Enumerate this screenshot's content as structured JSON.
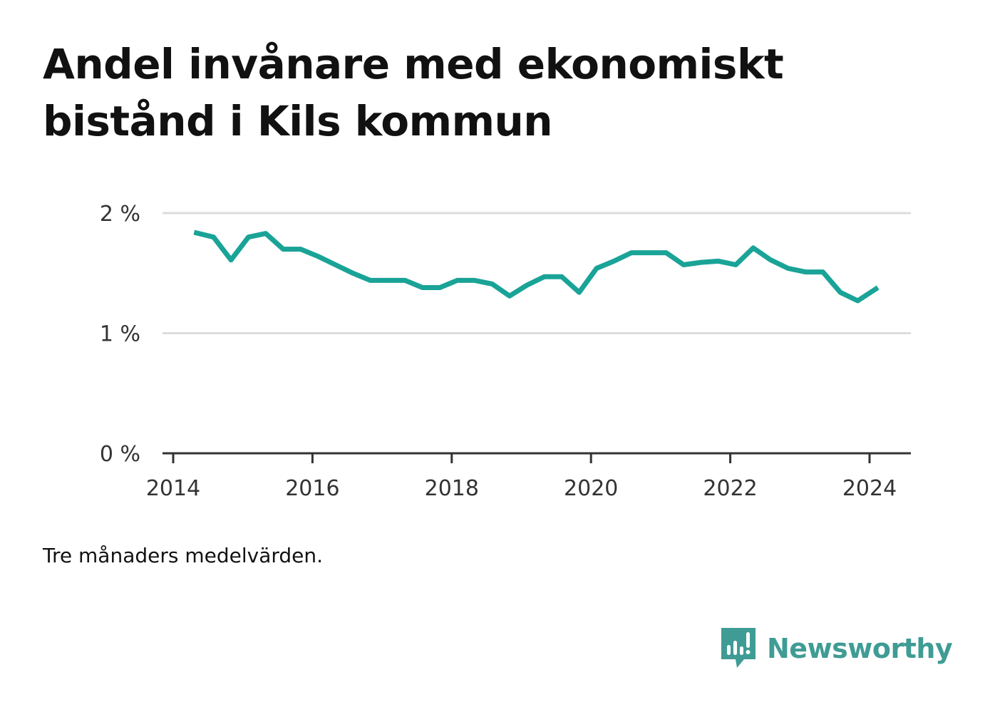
{
  "title": "Andel invånare med ekonomiskt bistånd i Kils kommun",
  "note": "Tre månaders medelvärden.",
  "brand": {
    "name": "Newsworthy",
    "color": "#3f9c94",
    "icon": "newsworthy-logo-icon"
  },
  "colors": {
    "line": "#1aa397",
    "grid": "#dddddd",
    "axis": "#333333"
  },
  "chart_data": {
    "type": "line",
    "title": "Andel invånare med ekonomiskt bistånd i Kils kommun",
    "xlabel": "",
    "ylabel": "",
    "xlim": [
      2014,
      2024.55
    ],
    "ylim": [
      0,
      2
    ],
    "x_ticks": [
      2014,
      2016,
      2018,
      2020,
      2022,
      2024
    ],
    "x_tick_labels": [
      "2014",
      "2016",
      "2018",
      "2020",
      "2022",
      "2024"
    ],
    "y_ticks": [
      0,
      1,
      2
    ],
    "y_tick_labels": [
      "0 %",
      "1 %",
      "2 %"
    ],
    "grid": true,
    "series": [
      {
        "x": [
          2014.3,
          2014.58,
          2014.83,
          2015.08,
          2015.33,
          2015.58,
          2015.83,
          2016.08,
          2016.33,
          2016.58,
          2016.83,
          2017.08,
          2017.33,
          2017.58,
          2017.83,
          2018.08,
          2018.33,
          2018.58,
          2018.83,
          2019.08,
          2019.33,
          2019.58,
          2019.83,
          2020.08,
          2020.33,
          2020.58,
          2020.83,
          2021.08,
          2021.33,
          2021.58,
          2021.83,
          2022.08,
          2022.33,
          2022.58,
          2022.83,
          2023.08,
          2023.33,
          2023.58,
          2023.83,
          2024.12
        ],
        "values": [
          1.84,
          1.8,
          1.61,
          1.8,
          1.83,
          1.7,
          1.7,
          1.64,
          1.57,
          1.5,
          1.44,
          1.44,
          1.44,
          1.38,
          1.38,
          1.44,
          1.44,
          1.41,
          1.31,
          1.4,
          1.47,
          1.47,
          1.34,
          1.54,
          1.6,
          1.67,
          1.67,
          1.67,
          1.57,
          1.59,
          1.6,
          1.57,
          1.71,
          1.61,
          1.54,
          1.51,
          1.51,
          1.34,
          1.27,
          1.38
        ]
      }
    ]
  }
}
